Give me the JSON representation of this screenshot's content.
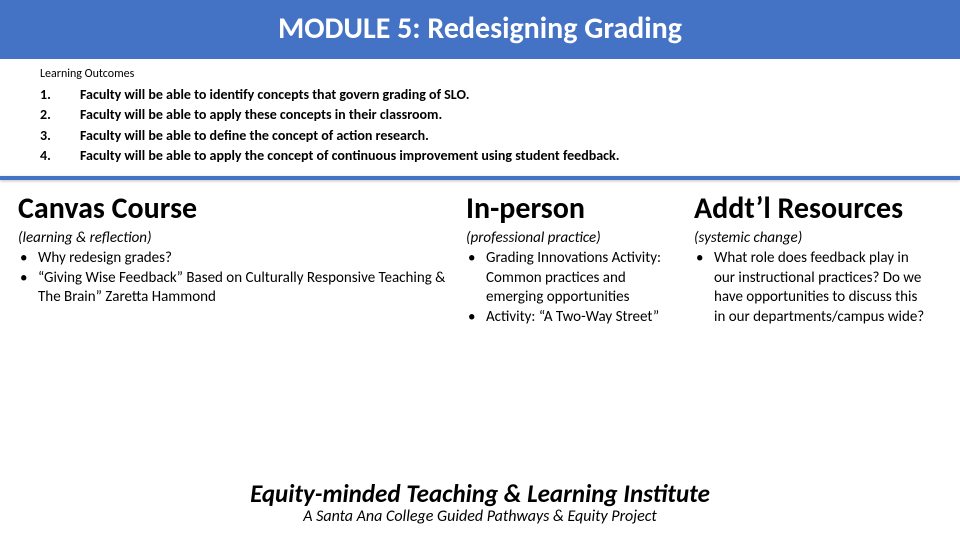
{
  "colors": {
    "banner_bg": "#4472c4",
    "banner_text": "#ffffff",
    "body_text": "#000000",
    "divider": "#4472c4",
    "page_bg": "#ffffff"
  },
  "title": "MODULE 5: Redesigning Grading",
  "outcomes": {
    "label": "Learning Outcomes",
    "items": [
      {
        "num": "1.",
        "text": "Faculty will be able to identify concepts that govern grading of SLO."
      },
      {
        "num": "2.",
        "text": "Faculty will be able to apply these concepts in their classroom."
      },
      {
        "num": "3.",
        "text": "Faculty will be able to define the concept of action research."
      },
      {
        "num": "4.",
        "text": "Faculty will be able to apply the concept of continuous improvement using student feedback."
      }
    ]
  },
  "columns": [
    {
      "heading": "Canvas Course",
      "subtitle": "(learning & reflection)",
      "bullets": [
        "Why redesign grades?",
        "“Giving Wise Feedback” Based on Culturally Responsive Teaching & The Brain” Zaretta Hammond"
      ]
    },
    {
      "heading": "In-person",
      "subtitle": "(professional practice)",
      "bullets": [
        "Grading Innovations Activity: Common practices and emerging opportunities",
        "Activity: “A Two-Way Street”"
      ]
    },
    {
      "heading": "Addt’l Resources",
      "subtitle": "(systemic change)",
      "bullets": [
        "What role does feedback play in our instructional practices? Do we have opportunities to discuss this in our departments/campus wide?"
      ]
    }
  ],
  "footer": {
    "line1": "Equity-minded Teaching & Learning Institute",
    "line2": "A Santa Ana College Guided Pathways & Equity Project"
  }
}
